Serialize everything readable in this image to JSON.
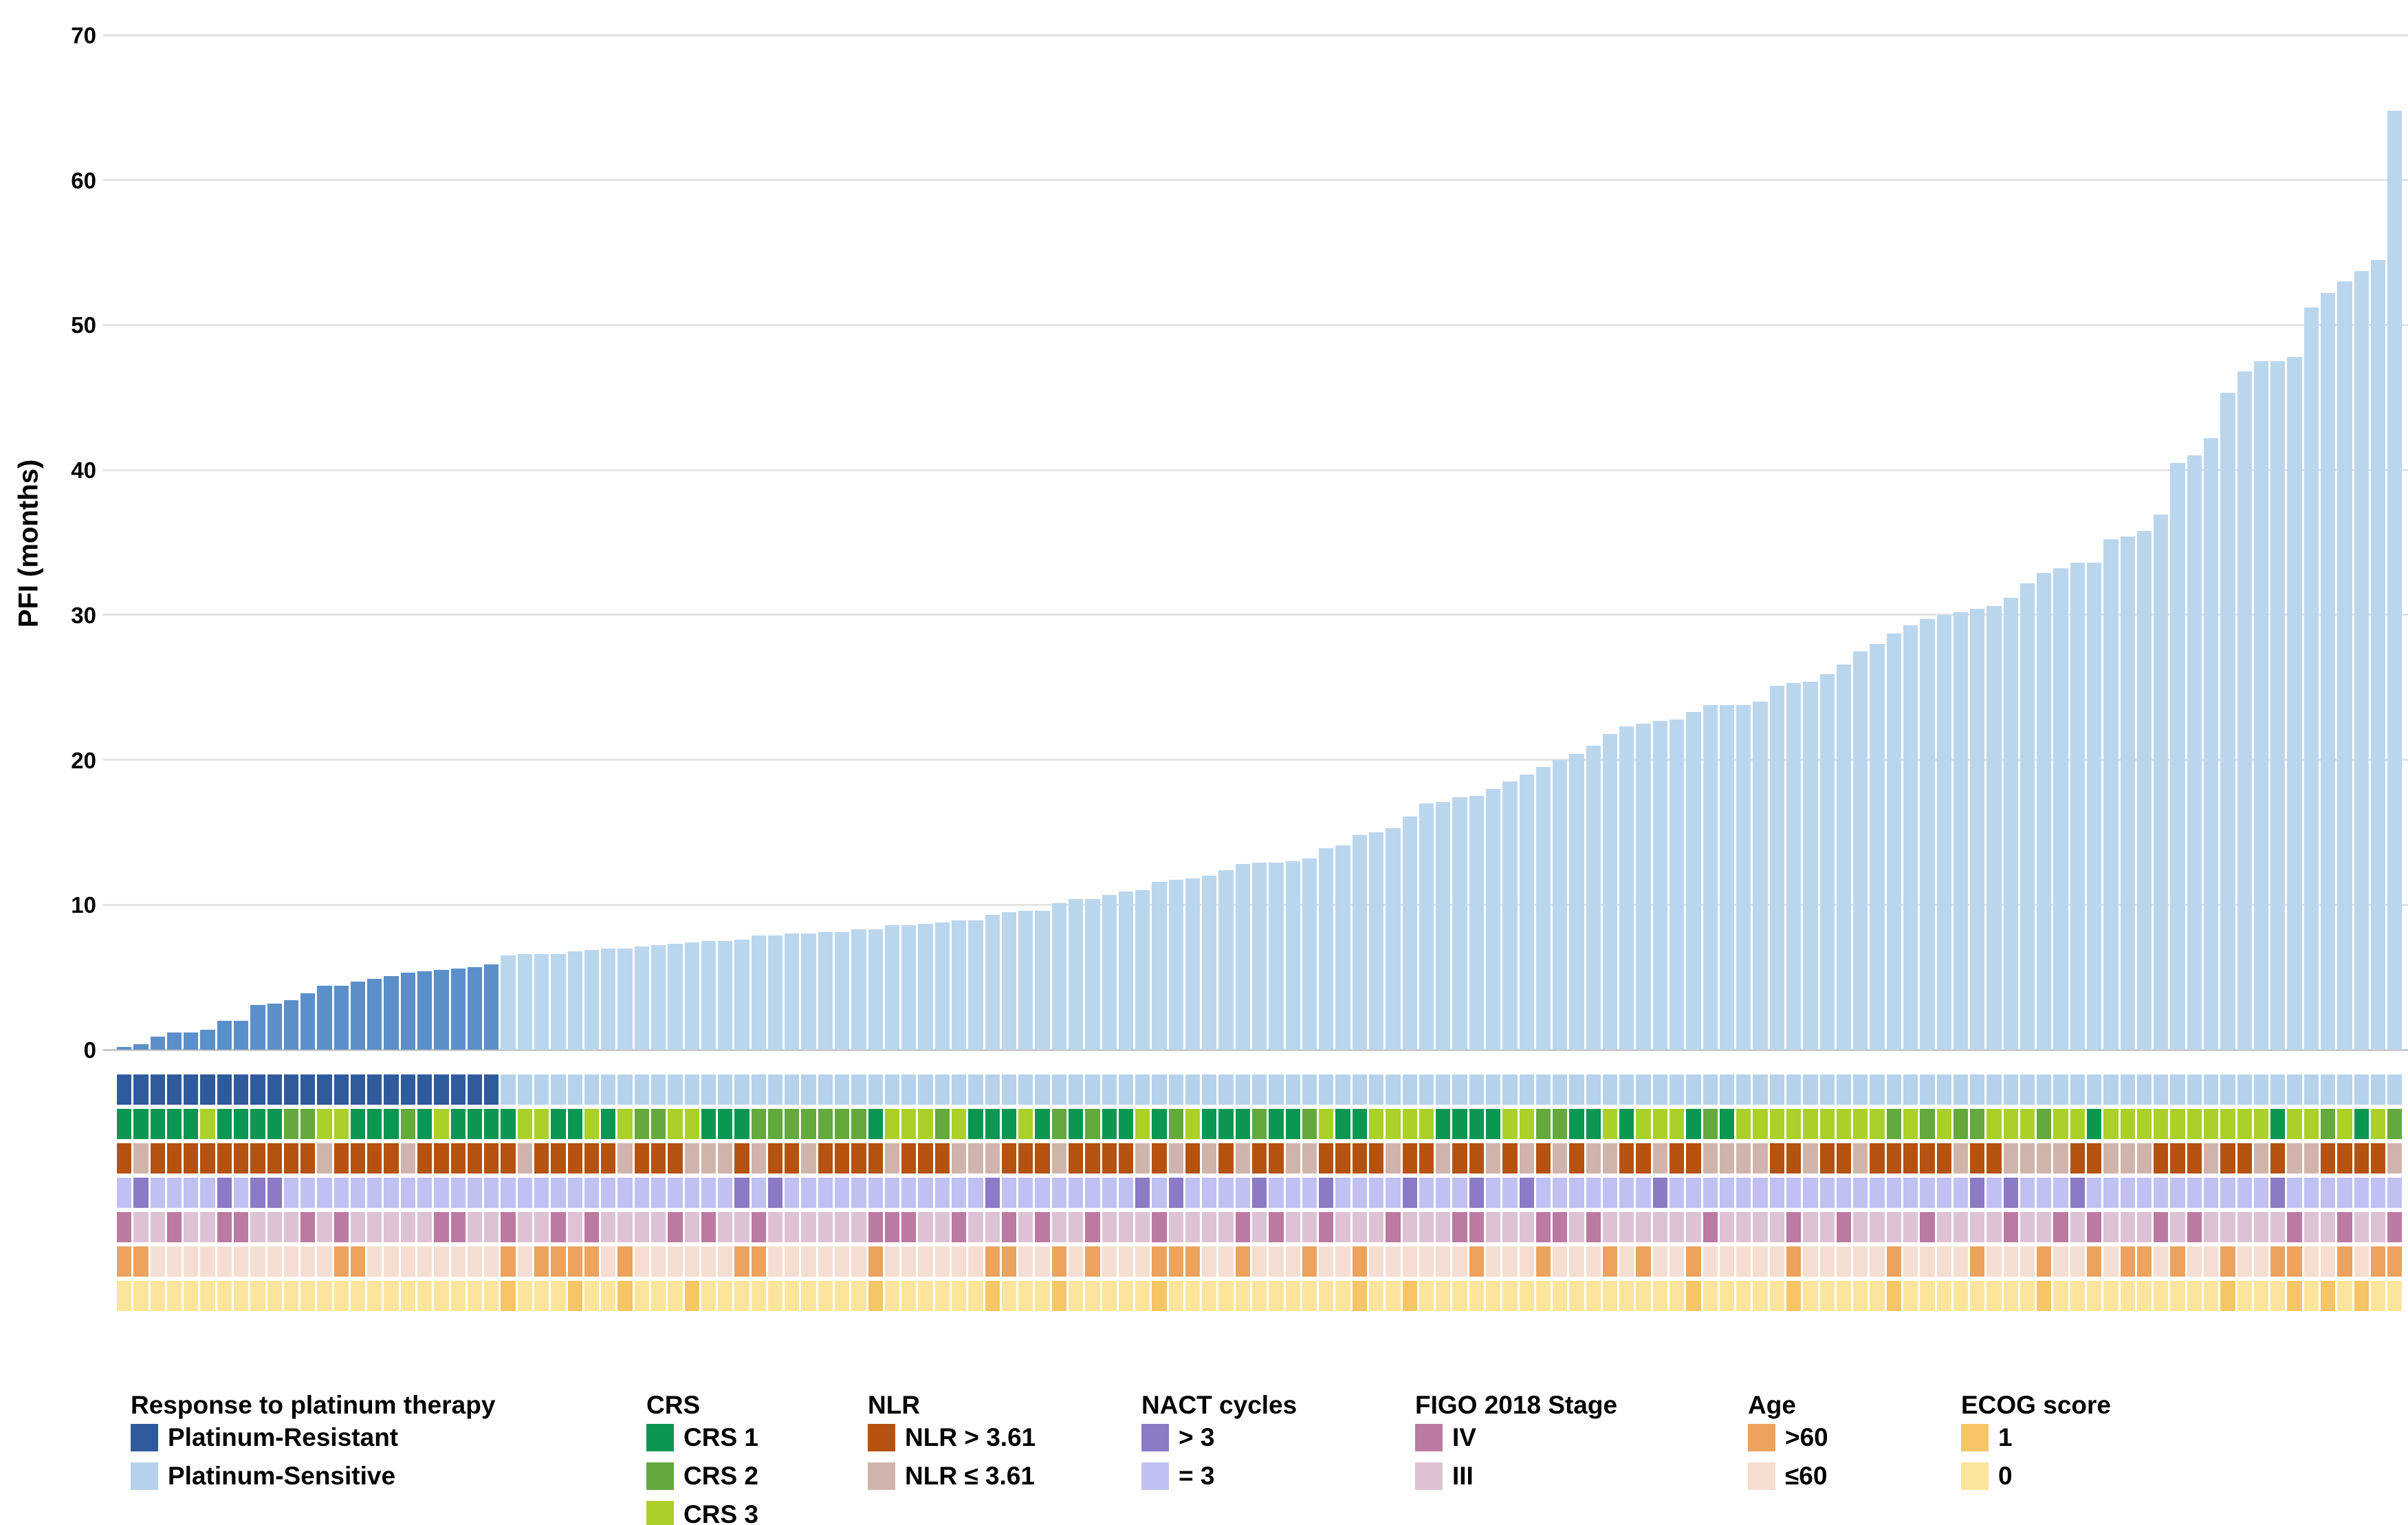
{
  "chart_data": {
    "type": "bar",
    "title": "",
    "xlabel": "",
    "ylabel": "PFI (months)",
    "ylim": [
      0,
      70
    ],
    "yticks": [
      0,
      10,
      20,
      30,
      40,
      50,
      60,
      70
    ],
    "grid": "horizontal",
    "n_patients": 137,
    "n_platinum_resistant": 23,
    "n_platinum_sensitive": 114,
    "values": [
      0.2,
      0.4,
      0.9,
      1.2,
      1.2,
      1.4,
      2,
      2,
      3.1,
      3.2,
      3.4,
      3.9,
      4.4,
      4.4,
      4.7,
      4.9,
      5.1,
      5.3,
      5.4,
      5.5,
      5.6,
      5.7,
      5.9,
      6.5,
      6.6,
      6.6,
      6.6,
      6.8,
      6.9,
      7,
      7,
      7.1,
      7.2,
      7.3,
      7.4,
      7.5,
      7.5,
      7.6,
      7.9,
      7.9,
      8,
      8,
      8.1,
      8.1,
      8.3,
      8.3,
      8.6,
      8.6,
      8.7,
      8.8,
      8.9,
      8.9,
      9.3,
      9.5,
      9.6,
      9.6,
      10.1,
      10.4,
      10.4,
      10.7,
      10.9,
      11,
      11.6,
      11.7,
      11.8,
      12,
      12.4,
      12.8,
      12.9,
      12.9,
      13,
      13.2,
      13.9,
      14.1,
      14.8,
      15,
      15.3,
      16.1,
      17,
      17.1,
      17.4,
      17.5,
      18,
      18.5,
      19,
      19.5,
      20,
      20.4,
      21,
      21.8,
      22.3,
      22.5,
      22.7,
      22.8,
      23.3,
      23.8,
      23.8,
      23.8,
      24,
      25.1,
      25.3,
      25.4,
      25.9,
      26.6,
      27.5,
      28,
      28.7,
      29.3,
      29.7,
      30,
      30.2,
      30.4,
      30.6,
      31.2,
      32.2,
      32.9,
      33.2,
      33.6,
      33.6,
      35.2,
      35.4,
      35.8,
      36.9,
      40.5,
      41,
      42.2,
      45.3,
      46.8,
      47.5,
      47.5,
      47.8,
      51.2,
      52.2,
      53,
      53.7,
      54.5,
      64.8
    ],
    "annotation_rows": [
      "response",
      "crs",
      "nlr",
      "nact_cycles",
      "figo_stage",
      "age",
      "ecog"
    ],
    "annotations": {
      "response": [
        "R",
        "R",
        "R",
        "R",
        "R",
        "R",
        "R",
        "R",
        "R",
        "R",
        "R",
        "R",
        "R",
        "R",
        "R",
        "R",
        "R",
        "R",
        "R",
        "R",
        "R",
        "R",
        "R",
        "S",
        "S",
        "S",
        "S",
        "S",
        "S",
        "S",
        "S",
        "S",
        "S",
        "S",
        "S",
        "S",
        "S",
        "S",
        "S",
        "S",
        "S",
        "S",
        "S",
        "S",
        "S",
        "S",
        "S",
        "S",
        "S",
        "S",
        "S",
        "S",
        "S",
        "S",
        "S",
        "S",
        "S",
        "S",
        "S",
        "S",
        "S",
        "S",
        "S",
        "S",
        "S",
        "S",
        "S",
        "S",
        "S",
        "S",
        "S",
        "S",
        "S",
        "S",
        "S",
        "S",
        "S",
        "S",
        "S",
        "S",
        "S",
        "S",
        "S",
        "S",
        "S",
        "S",
        "S",
        "S",
        "S",
        "S",
        "S",
        "S",
        "S",
        "S",
        "S",
        "S",
        "S",
        "S",
        "S",
        "S",
        "S",
        "S",
        "S",
        "S",
        "S",
        "S",
        "S",
        "S",
        "S",
        "S",
        "S",
        "S",
        "S",
        "S",
        "S",
        "S",
        "S",
        "S",
        "S",
        "S",
        "S",
        "S",
        "S",
        "S",
        "S",
        "S",
        "S",
        "S",
        "S",
        "S",
        "S",
        "S",
        "S",
        "S",
        "S",
        "S",
        "S"
      ],
      "crs": [
        "1",
        "1",
        "1",
        "1",
        "1",
        "3",
        "1",
        "1",
        "1",
        "1",
        "2",
        "2",
        "3",
        "3",
        "1",
        "1",
        "1",
        "2",
        "1",
        "3",
        "1",
        "1",
        "1",
        "1",
        "3",
        "3",
        "1",
        "1",
        "3",
        "1",
        "3",
        "2",
        "2",
        "3",
        "3",
        "1",
        "1",
        "1",
        "2",
        "2",
        "2",
        "2",
        "2",
        "2",
        "2",
        "1",
        "3",
        "3",
        "3",
        "2",
        "3",
        "1",
        "1",
        "1",
        "3",
        "1",
        "2",
        "1",
        "2",
        "1",
        "1",
        "3",
        "1",
        "2",
        "3",
        "1",
        "1",
        "1",
        "2",
        "1",
        "1",
        "2",
        "3",
        "1",
        "1",
        "3",
        "3",
        "3",
        "3",
        "1",
        "1",
        "1",
        "1",
        "3",
        "3",
        "2",
        "2",
        "1",
        "1",
        "3",
        "1",
        "3",
        "3",
        "3",
        "1",
        "2",
        "1",
        "3",
        "3",
        "3",
        "3",
        "3",
        "3",
        "3",
        "3",
        "3",
        "2",
        "3",
        "2",
        "3",
        "2",
        "2",
        "3",
        "3",
        "3",
        "2",
        "3",
        "3",
        "1",
        "3",
        "3",
        "3",
        "3",
        "3",
        "3",
        "3",
        "3",
        "3",
        "3",
        "1",
        "3",
        "3",
        "2",
        "3",
        "1",
        "3",
        "2"
      ],
      "nlr": [
        "H",
        "L",
        "H",
        "H",
        "H",
        "H",
        "H",
        "H",
        "H",
        "H",
        "H",
        "H",
        "L",
        "H",
        "H",
        "H",
        "H",
        "L",
        "H",
        "H",
        "H",
        "H",
        "H",
        "H",
        "L",
        "H",
        "H",
        "H",
        "H",
        "H",
        "L",
        "H",
        "H",
        "H",
        "L",
        "L",
        "L",
        "H",
        "L",
        "H",
        "H",
        "L",
        "H",
        "H",
        "H",
        "H",
        "L",
        "H",
        "H",
        "H",
        "L",
        "L",
        "L",
        "H",
        "H",
        "H",
        "L",
        "H",
        "H",
        "H",
        "H",
        "L",
        "H",
        "L",
        "H",
        "L",
        "H",
        "L",
        "H",
        "H",
        "L",
        "L",
        "H",
        "H",
        "H",
        "H",
        "L",
        "H",
        "H",
        "L",
        "H",
        "H",
        "L",
        "H",
        "L",
        "H",
        "L",
        "H",
        "L",
        "L",
        "H",
        "H",
        "L",
        "H",
        "H",
        "L",
        "L",
        "L",
        "L",
        "H",
        "H",
        "L",
        "H",
        "H",
        "L",
        "H",
        "H",
        "H",
        "H",
        "H",
        "L",
        "H",
        "H",
        "L",
        "L",
        "L",
        "L",
        "H",
        "H",
        "L",
        "L",
        "L",
        "H",
        "H",
        "H",
        "L",
        "H",
        "H",
        "L",
        "H",
        "L",
        "L",
        "H",
        "H",
        "H",
        "H",
        "L"
      ],
      "nact_cycles": [
        "E",
        "P",
        "E",
        "E",
        "E",
        "E",
        "P",
        "E",
        "P",
        "P",
        "E",
        "E",
        "E",
        "E",
        "E",
        "E",
        "E",
        "E",
        "E",
        "E",
        "E",
        "E",
        "E",
        "E",
        "E",
        "E",
        "E",
        "E",
        "E",
        "E",
        "E",
        "E",
        "E",
        "E",
        "E",
        "E",
        "E",
        "P",
        "E",
        "P",
        "E",
        "E",
        "E",
        "E",
        "E",
        "E",
        "E",
        "E",
        "E",
        "E",
        "E",
        "E",
        "P",
        "E",
        "E",
        "E",
        "E",
        "E",
        "E",
        "E",
        "E",
        "P",
        "E",
        "P",
        "E",
        "E",
        "E",
        "E",
        "P",
        "E",
        "E",
        "E",
        "P",
        "E",
        "E",
        "E",
        "E",
        "P",
        "E",
        "E",
        "E",
        "P",
        "E",
        "E",
        "P",
        "E",
        "E",
        "E",
        "E",
        "E",
        "E",
        "E",
        "P",
        "E",
        "E",
        "E",
        "E",
        "E",
        "E",
        "E",
        "E",
        "E",
        "E",
        "E",
        "E",
        "E",
        "E",
        "E",
        "E",
        "E",
        "E",
        "P",
        "E",
        "P",
        "E",
        "E",
        "E",
        "P",
        "E",
        "E",
        "E",
        "E",
        "E",
        "E",
        "E",
        "E",
        "E",
        "E",
        "E",
        "P",
        "E",
        "E",
        "E",
        "E",
        "E",
        "E",
        "E"
      ],
      "figo_stage": [
        "IV",
        "III",
        "III",
        "IV",
        "III",
        "III",
        "IV",
        "IV",
        "III",
        "III",
        "III",
        "IV",
        "III",
        "IV",
        "III",
        "III",
        "III",
        "III",
        "III",
        "IV",
        "IV",
        "III",
        "III",
        "IV",
        "III",
        "III",
        "IV",
        "III",
        "IV",
        "III",
        "III",
        "III",
        "III",
        "IV",
        "III",
        "IV",
        "III",
        "III",
        "IV",
        "III",
        "III",
        "III",
        "III",
        "III",
        "III",
        "IV",
        "IV",
        "IV",
        "III",
        "III",
        "IV",
        "III",
        "III",
        "IV",
        "III",
        "IV",
        "III",
        "III",
        "IV",
        "III",
        "III",
        "III",
        "IV",
        "III",
        "III",
        "III",
        "III",
        "IV",
        "III",
        "IV",
        "III",
        "III",
        "IV",
        "III",
        "III",
        "III",
        "IV",
        "III",
        "III",
        "III",
        "IV",
        "IV",
        "III",
        "III",
        "III",
        "IV",
        "IV",
        "III",
        "IV",
        "III",
        "III",
        "III",
        "III",
        "III",
        "III",
        "IV",
        "III",
        "III",
        "III",
        "III",
        "IV",
        "III",
        "III",
        "IV",
        "III",
        "III",
        "III",
        "III",
        "IV",
        "III",
        "III",
        "III",
        "III",
        "IV",
        "III",
        "III",
        "IV",
        "III",
        "IV",
        "III",
        "III",
        "III",
        "IV",
        "III",
        "IV",
        "III",
        "III",
        "III",
        "III",
        "III",
        "IV",
        "III",
        "III",
        "IV",
        "III",
        "III",
        "IV"
      ],
      "age": [
        "O",
        "O",
        "Y",
        "Y",
        "Y",
        "Y",
        "Y",
        "Y",
        "Y",
        "Y",
        "Y",
        "Y",
        "Y",
        "O",
        "O",
        "Y",
        "Y",
        "Y",
        "Y",
        "Y",
        "Y",
        "Y",
        "Y",
        "O",
        "Y",
        "O",
        "O",
        "O",
        "O",
        "Y",
        "O",
        "Y",
        "Y",
        "Y",
        "Y",
        "Y",
        "Y",
        "O",
        "O",
        "Y",
        "Y",
        "Y",
        "Y",
        "Y",
        "Y",
        "O",
        "Y",
        "Y",
        "Y",
        "Y",
        "Y",
        "Y",
        "O",
        "O",
        "Y",
        "Y",
        "O",
        "Y",
        "O",
        "Y",
        "Y",
        "Y",
        "O",
        "O",
        "O",
        "Y",
        "Y",
        "O",
        "Y",
        "Y",
        "Y",
        "O",
        "Y",
        "Y",
        "O",
        "Y",
        "Y",
        "Y",
        "Y",
        "Y",
        "Y",
        "O",
        "Y",
        "Y",
        "Y",
        "O",
        "Y",
        "Y",
        "Y",
        "O",
        "Y",
        "O",
        "Y",
        "Y",
        "O",
        "Y",
        "Y",
        "Y",
        "Y",
        "Y",
        "O",
        "Y",
        "Y",
        "Y",
        "Y",
        "Y",
        "O",
        "Y",
        "Y",
        "Y",
        "Y",
        "O",
        "Y",
        "Y",
        "Y",
        "O",
        "Y",
        "Y",
        "O",
        "Y",
        "O",
        "O",
        "Y",
        "O",
        "Y",
        "Y",
        "O",
        "Y",
        "Y",
        "O",
        "O",
        "Y",
        "Y",
        "O",
        "Y",
        "O",
        "O"
      ],
      "ecog": [
        "0",
        "0",
        "0",
        "0",
        "0",
        "0",
        "0",
        "0",
        "0",
        "0",
        "0",
        "0",
        "0",
        "0",
        "0",
        "0",
        "0",
        "0",
        "0",
        "0",
        "0",
        "0",
        "0",
        "1",
        "0",
        "0",
        "0",
        "1",
        "0",
        "0",
        "1",
        "0",
        "0",
        "0",
        "1",
        "0",
        "0",
        "0",
        "0",
        "0",
        "0",
        "0",
        "0",
        "0",
        "0",
        "1",
        "0",
        "0",
        "0",
        "0",
        "0",
        "0",
        "1",
        "0",
        "0",
        "0",
        "1",
        "0",
        "0",
        "0",
        "0",
        "0",
        "1",
        "0",
        "0",
        "0",
        "0",
        "0",
        "0",
        "0",
        "0",
        "0",
        "0",
        "0",
        "1",
        "0",
        "0",
        "1",
        "0",
        "0",
        "0",
        "0",
        "0",
        "0",
        "0",
        "0",
        "0",
        "0",
        "0",
        "0",
        "0",
        "0",
        "0",
        "0",
        "1",
        "0",
        "0",
        "0",
        "0",
        "0",
        "1",
        "0",
        "0",
        "0",
        "0",
        "0",
        "1",
        "0",
        "0",
        "0",
        "0",
        "0",
        "0",
        "0",
        "0",
        "1",
        "0",
        "0",
        "0",
        "0",
        "0",
        "0",
        "0",
        "0",
        "0",
        "0",
        "1",
        "0",
        "0",
        "0",
        "1",
        "0",
        "1",
        "0",
        "1",
        "0",
        "0"
      ]
    },
    "colors": {
      "bar": {
        "R": "#5b8fc9",
        "S": "#bad6ed"
      },
      "response": {
        "R": "#2f5b9c",
        "S": "#b5d2ea"
      },
      "crs": {
        "1": "#0b9751",
        "2": "#63a93c",
        "3": "#abd028"
      },
      "nlr": {
        "H": "#b5520f",
        "L": "#d0b4ac"
      },
      "nact_cycles": {
        "P": "#8b7ac5",
        "E": "#c0c1f2"
      },
      "figo_stage": {
        "IV": "#bb7aa2",
        "III": "#ddc2d6"
      },
      "age": {
        "O": "#eca35d",
        "Y": "#f6ddd1"
      },
      "ecog": {
        "1": "#f6c566",
        "0": "#fbe59c"
      },
      "gridline": "#e3e3e3"
    }
  },
  "legend": {
    "groups": [
      {
        "title": "Response to platinum therapy",
        "x": 190,
        "items": [
          {
            "label": "Platinum-Resistant",
            "color": "#2f5b9c"
          },
          {
            "label": "Platinum-Sensitive",
            "color": "#b5d2ea"
          }
        ]
      },
      {
        "title": "CRS",
        "x": 940,
        "items": [
          {
            "label": "CRS 1",
            "color": "#0b9751"
          },
          {
            "label": "CRS 2",
            "color": "#63a93c"
          },
          {
            "label": "CRS 3",
            "color": "#abd028"
          }
        ]
      },
      {
        "title": "NLR",
        "x": 1262,
        "items": [
          {
            "label": "NLR > 3.61",
            "color": "#b5520f"
          },
          {
            "label": "NLR ≤ 3.61",
            "color": "#d0b4ac"
          }
        ]
      },
      {
        "title": "NACT cycles",
        "x": 1660,
        "items": [
          {
            "label": "> 3",
            "color": "#8b7ac5"
          },
          {
            "label": "= 3",
            "color": "#c0c1f2"
          }
        ]
      },
      {
        "title": "FIGO 2018 Stage",
        "x": 2058,
        "items": [
          {
            "label": "IV",
            "color": "#bb7aa2"
          },
          {
            "label": "III",
            "color": "#ddc2d6"
          }
        ]
      },
      {
        "title": "Age",
        "x": 2542,
        "items": [
          {
            "label": ">60",
            "color": "#eca35d"
          },
          {
            "label": "≤60",
            "color": "#f6ddd1"
          }
        ]
      },
      {
        "title": "ECOG score",
        "x": 2852,
        "items": [
          {
            "label": "1",
            "color": "#f6c566"
          },
          {
            "label": "0",
            "color": "#fbe59c"
          }
        ]
      }
    ]
  }
}
